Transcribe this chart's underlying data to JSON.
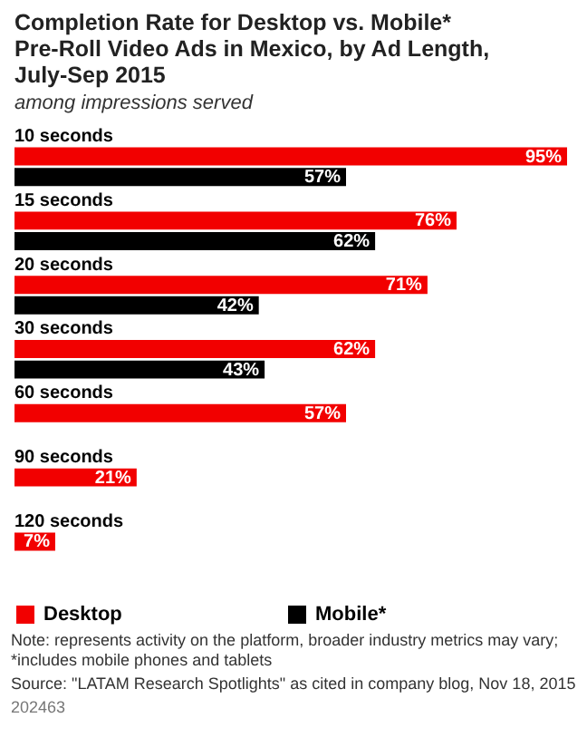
{
  "chart_data": {
    "type": "bar",
    "orientation": "horizontal",
    "title": "Completion Rate for Desktop vs. Mobile* Pre-Roll Video Ads in Mexico, by Ad Length, July-Sep 2015",
    "subtitle": "among impressions served",
    "categories": [
      "10 seconds",
      "15 seconds",
      "20 seconds",
      "30 seconds",
      "60 seconds",
      "90 seconds",
      "120 seconds"
    ],
    "series": [
      {
        "name": "Desktop",
        "color": "#f20000",
        "values": [
          95,
          76,
          71,
          62,
          57,
          21,
          7
        ],
        "value_labels": [
          "95%",
          "76%",
          "71%",
          "62%",
          "57%",
          "21%",
          "7%"
        ]
      },
      {
        "name": "Mobile*",
        "color": "#000000",
        "values": [
          57,
          62,
          42,
          43,
          null,
          null,
          null
        ],
        "value_labels": [
          "57%",
          "62%",
          "42%",
          "43%",
          null,
          null,
          null
        ]
      }
    ],
    "legend": "bottom",
    "annotations": [
      "Note: represents activity on the platform, broader industry metrics may vary; *includes mobile phones and tablets",
      "Source: \"LATAM Research Spotlights\" as cited in company blog, Nov 18, 2015",
      "202463"
    ]
  }
}
